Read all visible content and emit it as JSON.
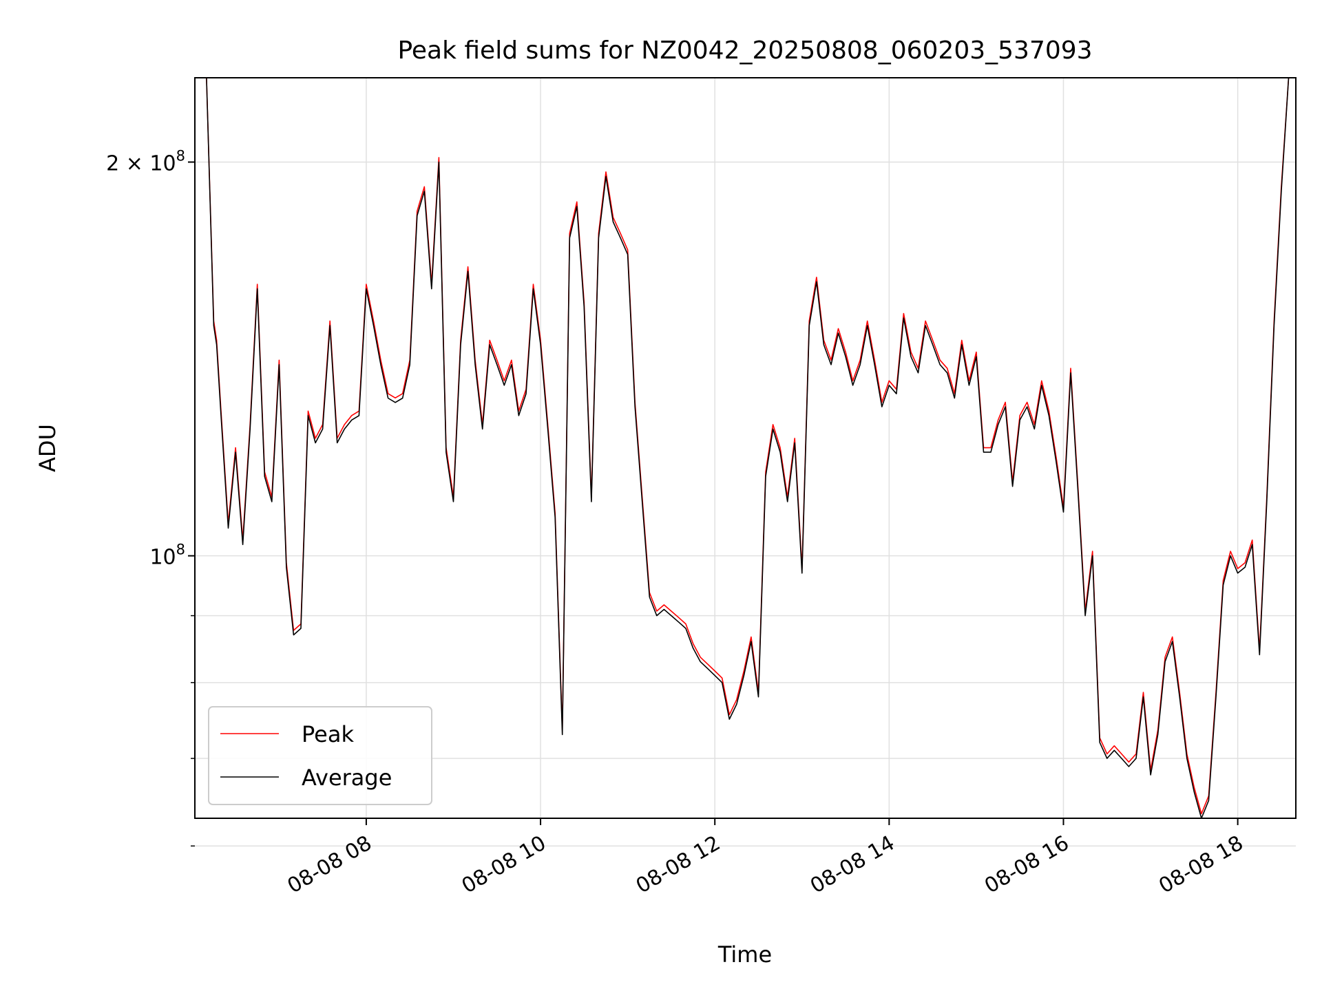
{
  "chart_data": {
    "type": "line",
    "title": "Peak field sums for NZ0042_20250808_060203_537093",
    "xlabel": "Time",
    "ylabel": "ADU",
    "y_scale": "log",
    "ylim": [
      63000000,
      232000000
    ],
    "xlim": [
      "2025-08-08 06:02",
      "2025-08-08 18:40"
    ],
    "x_ticks": [
      {
        "value": "2025-08-08 08:00",
        "label": "08-08 08"
      },
      {
        "value": "2025-08-08 10:00",
        "label": "08-08 10"
      },
      {
        "value": "2025-08-08 12:00",
        "label": "08-08 12"
      },
      {
        "value": "2025-08-08 14:00",
        "label": "08-08 14"
      },
      {
        "value": "2025-08-08 16:00",
        "label": "08-08 16"
      },
      {
        "value": "2025-08-08 18:00",
        "label": "08-08 18"
      }
    ],
    "y_major_ticks": [
      {
        "value": 100000000,
        "base": "10",
        "exp": "8",
        "prefix": ""
      },
      {
        "value": 200000000,
        "base": "10",
        "exp": "8",
        "prefix": "2 × "
      }
    ],
    "y_minor_ticks": [
      60000000,
      70000000,
      80000000,
      90000000
    ],
    "grid": true,
    "legend_position": "lower-left",
    "series": [
      {
        "name": "Peak",
        "color": "#ff0000",
        "offset_factor": 1.008
      },
      {
        "name": "Average",
        "color": "#000000",
        "offset_factor": 1.0
      }
    ],
    "x": [
      "06:02",
      "06:10",
      "06:15",
      "06:17",
      "06:20",
      "06:25",
      "06:30",
      "06:35",
      "06:40",
      "06:45",
      "06:50",
      "06:55",
      "07:00",
      "07:05",
      "07:10",
      "07:15",
      "07:20",
      "07:25",
      "07:30",
      "07:35",
      "07:40",
      "07:45",
      "07:50",
      "07:55",
      "08:00",
      "08:05",
      "08:10",
      "08:15",
      "08:20",
      "08:25",
      "08:30",
      "08:35",
      "08:40",
      "08:45",
      "08:50",
      "08:55",
      "09:00",
      "09:05",
      "09:10",
      "09:15",
      "09:20",
      "09:25",
      "09:30",
      "09:35",
      "09:40",
      "09:45",
      "09:50",
      "09:55",
      "10:00",
      "10:05",
      "10:10",
      "10:15",
      "10:20",
      "10:25",
      "10:30",
      "10:35",
      "10:40",
      "10:45",
      "10:50",
      "10:55",
      "11:00",
      "11:05",
      "11:10",
      "11:15",
      "11:20",
      "11:25",
      "11:30",
      "11:35",
      "11:40",
      "11:45",
      "11:50",
      "11:55",
      "12:00",
      "12:05",
      "12:10",
      "12:15",
      "12:20",
      "12:25",
      "12:30",
      "12:35",
      "12:40",
      "12:45",
      "12:50",
      "12:55",
      "13:00",
      "13:05",
      "13:10",
      "13:15",
      "13:20",
      "13:25",
      "13:30",
      "13:35",
      "13:40",
      "13:45",
      "13:50",
      "13:55",
      "14:00",
      "14:05",
      "14:10",
      "14:15",
      "14:20",
      "14:25",
      "14:30",
      "14:35",
      "14:40",
      "14:45",
      "14:50",
      "14:55",
      "15:00",
      "15:05",
      "15:10",
      "15:15",
      "15:20",
      "15:25",
      "15:30",
      "15:35",
      "15:40",
      "15:45",
      "15:50",
      "15:55",
      "16:00",
      "16:05",
      "16:10",
      "16:15",
      "16:20",
      "16:25",
      "16:30",
      "16:35",
      "16:40",
      "16:45",
      "16:50",
      "16:55",
      "17:00",
      "17:05",
      "17:10",
      "17:15",
      "17:20",
      "17:25",
      "17:30",
      "17:35",
      "17:40",
      "17:45",
      "17:50",
      "17:55",
      "18:00",
      "18:05",
      "18:10",
      "18:15",
      "18:20",
      "18:25",
      "18:30",
      "18:35",
      "18:40"
    ],
    "values": [
      232000000,
      232000000,
      150000000,
      145000000,
      128000000,
      105000000,
      120000000,
      102000000,
      125000000,
      160000000,
      115000000,
      110000000,
      140000000,
      98000000,
      87000000,
      88000000,
      128000000,
      122000000,
      125000000,
      150000000,
      122000000,
      125000000,
      127000000,
      128000000,
      160000000,
      150000000,
      140000000,
      132000000,
      131000000,
      132000000,
      140000000,
      182000000,
      190000000,
      160000000,
      200000000,
      120000000,
      110000000,
      145000000,
      165000000,
      140000000,
      125000000,
      145000000,
      140000000,
      135000000,
      140000000,
      128000000,
      133000000,
      160000000,
      145000000,
      125000000,
      107000000,
      73000000,
      175000000,
      185000000,
      155000000,
      110000000,
      175000000,
      195000000,
      180000000,
      175000000,
      170000000,
      130000000,
      110000000,
      93000000,
      90000000,
      91000000,
      90000000,
      89000000,
      88000000,
      85000000,
      83000000,
      82000000,
      81000000,
      80000000,
      75000000,
      77000000,
      81000000,
      86000000,
      78000000,
      115000000,
      125000000,
      120000000,
      110000000,
      122000000,
      97000000,
      150000000,
      162000000,
      145000000,
      140000000,
      148000000,
      142000000,
      135000000,
      140000000,
      150000000,
      140000000,
      130000000,
      135000000,
      133000000,
      152000000,
      142000000,
      138000000,
      150000000,
      145000000,
      140000000,
      138000000,
      132000000,
      145000000,
      135000000,
      142000000,
      120000000,
      120000000,
      126000000,
      130000000,
      113000000,
      127000000,
      130000000,
      125000000,
      135000000,
      128000000,
      118000000,
      108000000,
      138000000,
      112000000,
      90000000,
      100000000,
      72000000,
      70000000,
      71000000,
      70000000,
      69000000,
      70000000,
      78000000,
      68000000,
      73000000,
      83000000,
      86000000,
      78000000,
      70000000,
      66000000,
      63000000,
      65000000,
      78000000,
      95000000,
      100000000,
      97000000,
      98000000,
      102000000,
      84000000,
      110000000,
      150000000,
      190000000,
      232000000,
      232000000
    ]
  }
}
